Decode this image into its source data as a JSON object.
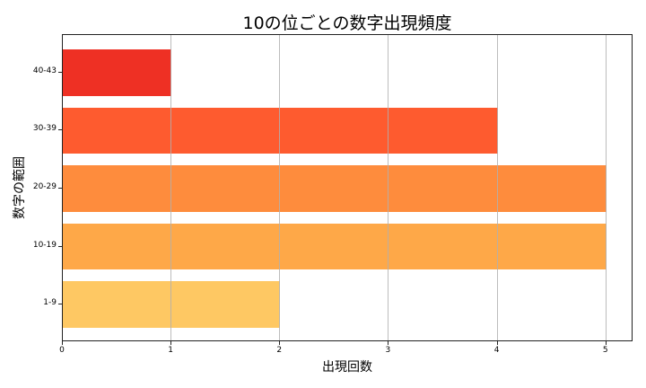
{
  "chart_data": {
    "type": "bar",
    "orientation": "horizontal",
    "title": "10の位ごとの数字出現頻度",
    "xlabel": "出現回数",
    "ylabel": "数字の範囲",
    "categories": [
      "1-9",
      "10-19",
      "20-29",
      "30-39",
      "40-43"
    ],
    "values": [
      2,
      5,
      5,
      4,
      1
    ],
    "colors": [
      "#fec863",
      "#fea848",
      "#fe8c3d",
      "#fe5b2f",
      "#ee3024"
    ],
    "xlim": [
      0,
      5.25
    ],
    "xticks": [
      "0",
      "1",
      "2",
      "3",
      "4",
      "5"
    ],
    "grid": "x"
  }
}
